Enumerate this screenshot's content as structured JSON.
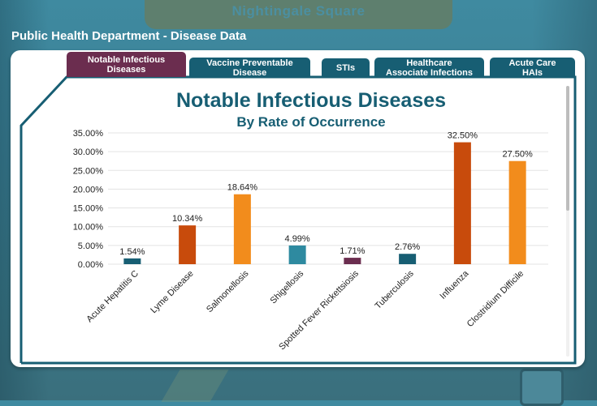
{
  "header": {
    "site_name": "Nightingale Square"
  },
  "page": {
    "title": "Public Health Department - Disease Data"
  },
  "tabs": [
    {
      "label_line1": "Notable Infectious",
      "label_line2": "Diseases",
      "active": true
    },
    {
      "label_line1": "Vaccine Preventable",
      "label_line2": "Disease",
      "active": false
    },
    {
      "label_line1": "STIs",
      "label_line2": "",
      "active": false
    },
    {
      "label_line1": "Healthcare",
      "label_line2": "Associate Infections",
      "active": false
    },
    {
      "label_line1": "Acute Care",
      "label_line2": "HAIs",
      "active": false
    }
  ],
  "colors": {
    "teal": "#175e73",
    "maroon": "#6b2d4f",
    "orange_dark": "#c84b0c",
    "orange": "#f28c1c",
    "teal_light": "#2e8aa0",
    "plum": "#6b2d4f"
  },
  "chart_data": {
    "type": "bar",
    "title": "Notable Infectious Diseases",
    "subtitle": "By Rate of Occurrence",
    "xlabel": "",
    "ylabel": "",
    "ylim": [
      0,
      35
    ],
    "yticks": [
      "0.00%",
      "5.00%",
      "10.00%",
      "15.00%",
      "20.00%",
      "25.00%",
      "30.00%",
      "35.00%"
    ],
    "ytick_values": [
      0,
      5,
      10,
      15,
      20,
      25,
      30,
      35
    ],
    "grid": true,
    "categories": [
      "Acute Hepatitis C",
      "Lyme Disease",
      "Salmonellosis",
      "Shigellosis",
      "Spotted Fever Rickettsiosis",
      "Tuberculosis",
      "Influenza",
      "Clostridium Difficile"
    ],
    "values": [
      1.54,
      10.34,
      18.64,
      4.99,
      1.71,
      2.76,
      32.5,
      27.5
    ],
    "data_labels": [
      "1.54%",
      "10.34%",
      "18.64%",
      "4.99%",
      "1.71%",
      "2.76%",
      "32.50%",
      "27.50%"
    ],
    "bar_colors": [
      "#175e73",
      "#c84b0c",
      "#f28c1c",
      "#2e8aa0",
      "#6b2d4f",
      "#175e73",
      "#c84b0c",
      "#f28c1c"
    ]
  }
}
